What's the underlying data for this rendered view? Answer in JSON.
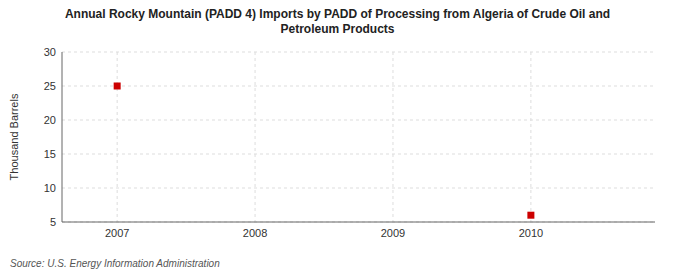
{
  "chart_data": {
    "type": "scatter",
    "title": "Annual Rocky Mountain (PADD 4) Imports by PADD of Processing from Algeria of Crude Oil and\nPetroleum Products",
    "y_label": "Thousand Barrels",
    "source": "Source: U.S. Energy Information Administration",
    "x": [
      2007,
      2010
    ],
    "values": [
      25,
      6
    ],
    "color": "#cc0000",
    "marker": "square",
    "xlim": [
      2006.6,
      2010.9
    ],
    "ylim": [
      5,
      30
    ],
    "xticks": [
      2007,
      2008,
      2009,
      2010
    ],
    "yticks": [
      5,
      10,
      15,
      20,
      25,
      30
    ],
    "grid": true
  }
}
